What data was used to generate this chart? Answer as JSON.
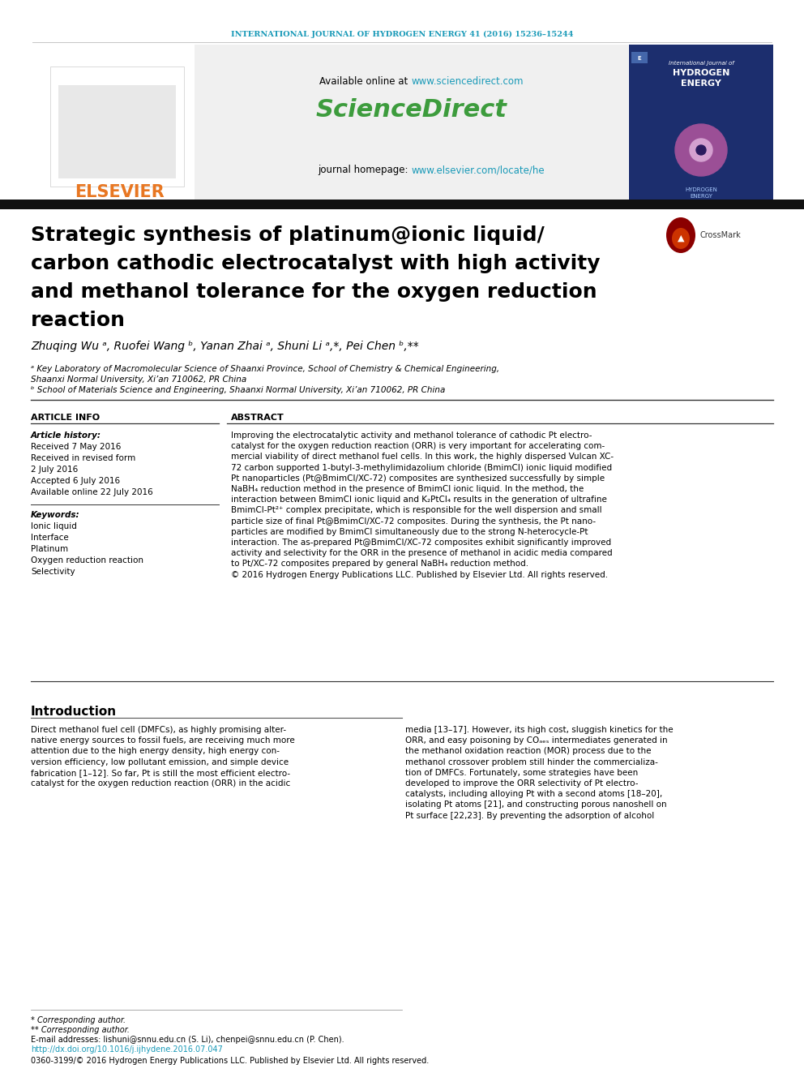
{
  "bg_color": "#ffffff",
  "header_journal_text": "INTERNATIONAL JOURNAL OF HYDROGEN ENERGY 41 (2016) 15236–15244",
  "header_journal_color": "#1a9ab8",
  "title_lines": [
    "Strategic synthesis of platinum@ionic liquid/",
    "carbon cathodic electrocatalyst with high activity",
    "and methanol tolerance for the oxygen reduction",
    "reaction"
  ],
  "authors_line": "Zhuqing Wu ᵃ, Ruofei Wang ᵇ, Yanan Zhai ᵃ, Shuni Li ᵃ,*, Pei Chen ᵇ,**",
  "affiliation_a1": "ᵃ Key Laboratory of Macromolecular Science of Shaanxi Province, School of Chemistry & Chemical Engineering,",
  "affiliation_a2": "Shaanxi Normal University, Xi’an 710062, PR China",
  "affiliation_b": "ᵇ School of Materials Science and Engineering, Shaanxi Normal University, Xi’an 710062, PR China",
  "article_info_header": "ARTICLE INFO",
  "article_history_header": "Article history:",
  "article_history_lines": [
    "Received 7 May 2016",
    "Received in revised form",
    "2 July 2016",
    "Accepted 6 July 2016",
    "Available online 22 July 2016"
  ],
  "keywords_header": "Keywords:",
  "keywords": [
    "Ionic liquid",
    "Interface",
    "Platinum",
    "Oxygen reduction reaction",
    "Selectivity"
  ],
  "abstract_header": "ABSTRACT",
  "abstract_lines": [
    "Improving the electrocatalytic activity and methanol tolerance of cathodic Pt electro-",
    "catalyst for the oxygen reduction reaction (ORR) is very important for accelerating com-",
    "mercial viability of direct methanol fuel cells. In this work, the highly dispersed Vulcan XC-",
    "72 carbon supported 1-butyl-3-methylimidazolium chloride (BmimCl) ionic liquid modified",
    "Pt nanoparticles (Pt@BmimCl/XC-72) composites are synthesized successfully by simple",
    "NaBH₄ reduction method in the presence of BmimCl ionic liquid. In the method, the",
    "interaction between BmimCl ionic liquid and K₂PtCl₄ results in the generation of ultrafine",
    "BmimCl-Pt²⁺ complex precipitate, which is responsible for the well dispersion and small",
    "particle size of final Pt@BmimCl/XC-72 composites. During the synthesis, the Pt nano-",
    "particles are modified by BmimCl simultaneously due to the strong N-heterocycle-Pt",
    "interaction. The as-prepared Pt@BmimCl/XC-72 composites exhibit significantly improved",
    "activity and selectivity for the ORR in the presence of methanol in acidic media compared",
    "to Pt/XC-72 composites prepared by general NaBH₄ reduction method.",
    "© 2016 Hydrogen Energy Publications LLC. Published by Elsevier Ltd. All rights reserved."
  ],
  "intro_header": "Introduction",
  "intro_col1_lines": [
    "Direct methanol fuel cell (DMFCs), as highly promising alter-",
    "native energy sources to fossil fuels, are receiving much more",
    "attention due to the high energy density, high energy con-",
    "version efficiency, low pollutant emission, and simple device",
    "fabrication [1–12]. So far, Pt is still the most efficient electro-",
    "catalyst for the oxygen reduction reaction (ORR) in the acidic"
  ],
  "intro_col2_lines": [
    "media [13–17]. However, its high cost, sluggish kinetics for the",
    "ORR, and easy poisoning by COₐₑₛ intermediates generated in",
    "the methanol oxidation reaction (MOR) process due to the",
    "methanol crossover problem still hinder the commercializa-",
    "tion of DMFCs. Fortunately, some strategies have been",
    "developed to improve the ORR selectivity of Pt electro-",
    "catalysts, including alloying Pt with a second atoms [18–20],",
    "isolating Pt atoms [21], and constructing porous nanoshell on",
    "Pt surface [22,23]. By preventing the adsorption of alcohol"
  ],
  "footer_star1": "* Corresponding author.",
  "footer_star2": "** Corresponding author.",
  "footer_email": "E-mail addresses: lishuni@snnu.edu.cn (S. Li), chenpei@snnu.edu.cn (P. Chen).",
  "footer_doi": "http://dx.doi.org/10.1016/j.ijhydene.2016.07.047",
  "footer_issn": "0360-3199/© 2016 Hydrogen Energy Publications LLC. Published by Elsevier Ltd. All rights reserved.",
  "elsevier_orange": "#e87722",
  "teal_color": "#1a9ab8",
  "green_color": "#3d9c3d",
  "gray_bg": "#f0f0f0",
  "dark_bar": "#111111",
  "sep_line": "#333333",
  "light_line": "#888888"
}
